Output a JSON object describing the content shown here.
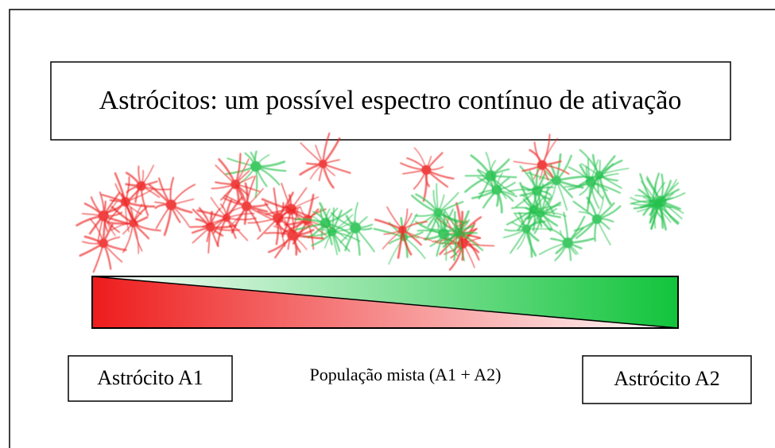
{
  "title": "Astrócitos: um possível espectro contínuo de ativação",
  "labels": {
    "left": "Astrócito A1",
    "middle": "População mista (A1 + A2)",
    "right": "Astrócito A2"
  }
}
